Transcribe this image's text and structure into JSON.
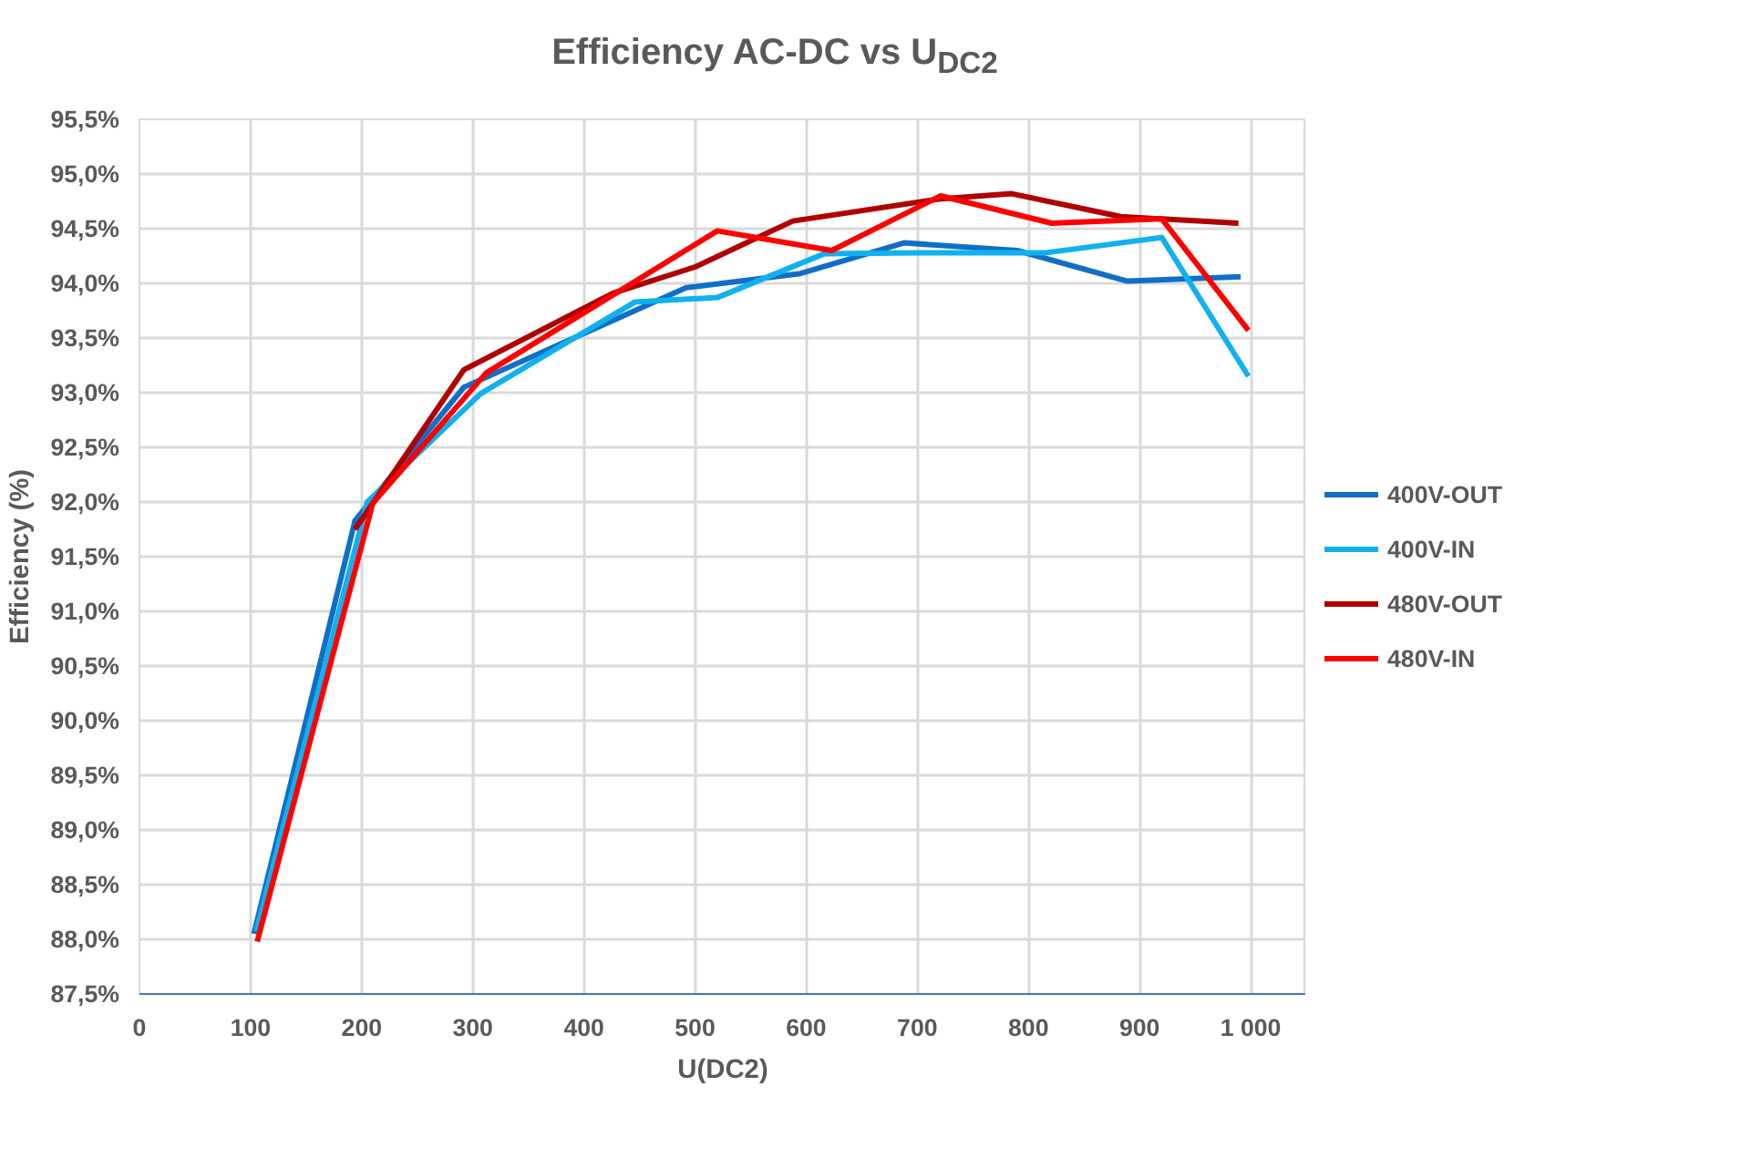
{
  "chart_data": {
    "type": "line",
    "title": "Efficiency AC-DC vs U$_{DC2}$",
    "xlabel": "U(DC2)",
    "ylabel": "Efficiency (%)",
    "xlim": [
      0,
      1050
    ],
    "ylim": [
      87.5,
      95.5
    ],
    "xticks": [
      0,
      100,
      200,
      300,
      400,
      500,
      600,
      700,
      800,
      900,
      {
        "value": 1000,
        "label": "1 000"
      }
    ],
    "yticks": [
      {
        "value": 87.5,
        "label": "87,5%"
      },
      {
        "value": 88.0,
        "label": "88,0%"
      },
      {
        "value": 88.5,
        "label": "88,5%"
      },
      {
        "value": 89.0,
        "label": "89,0%"
      },
      {
        "value": 89.5,
        "label": "89,5%"
      },
      {
        "value": 90.0,
        "label": "90,0%"
      },
      {
        "value": 90.5,
        "label": "90,5%"
      },
      {
        "value": 91.0,
        "label": "91,0%"
      },
      {
        "value": 91.5,
        "label": "91,5%"
      },
      {
        "value": 92.0,
        "label": "92,0%"
      },
      {
        "value": 92.5,
        "label": "92,5%"
      },
      {
        "value": 93.0,
        "label": "93,0%"
      },
      {
        "value": 93.5,
        "label": "93,5%"
      },
      {
        "value": 94.0,
        "label": "94,0%"
      },
      {
        "value": 94.5,
        "label": "94,5%"
      },
      {
        "value": 95.0,
        "label": "95,0%"
      },
      {
        "value": 95.5,
        "label": "95,5%"
      }
    ],
    "grid": true,
    "legend": "right",
    "series": [
      {
        "name": "400V-OUT",
        "color": "#0f6fc6",
        "x": [
          103,
          194,
          292,
          492,
          595,
          688,
          790,
          889,
          991
        ],
        "values": [
          88.05,
          91.83,
          93.05,
          93.96,
          94.09,
          94.37,
          94.3,
          94.02,
          94.06
        ]
      },
      {
        "name": "400V-IN",
        "color": "#11b0ef",
        "x": [
          105,
          205,
          307,
          446,
          520,
          616,
          700,
          816,
          920,
          998
        ],
        "values": [
          88.07,
          92.0,
          92.99,
          93.83,
          93.87,
          94.27,
          94.28,
          94.28,
          94.42,
          93.15
        ]
      },
      {
        "name": "480V-OUT",
        "color": "#b00000",
        "x": [
          194,
          292,
          426,
          500,
          588,
          719,
          785,
          883,
          989
        ],
        "values": [
          91.75,
          93.21,
          93.91,
          94.15,
          94.57,
          94.77,
          94.82,
          94.61,
          94.55
        ]
      },
      {
        "name": "480V-IN",
        "color": "#ff0000",
        "x": [
          106,
          210,
          312,
          520,
          623,
          721,
          821,
          920,
          998
        ],
        "values": [
          87.98,
          91.99,
          93.18,
          94.48,
          94.3,
          94.8,
          94.55,
          94.59,
          93.57
        ]
      }
    ]
  }
}
